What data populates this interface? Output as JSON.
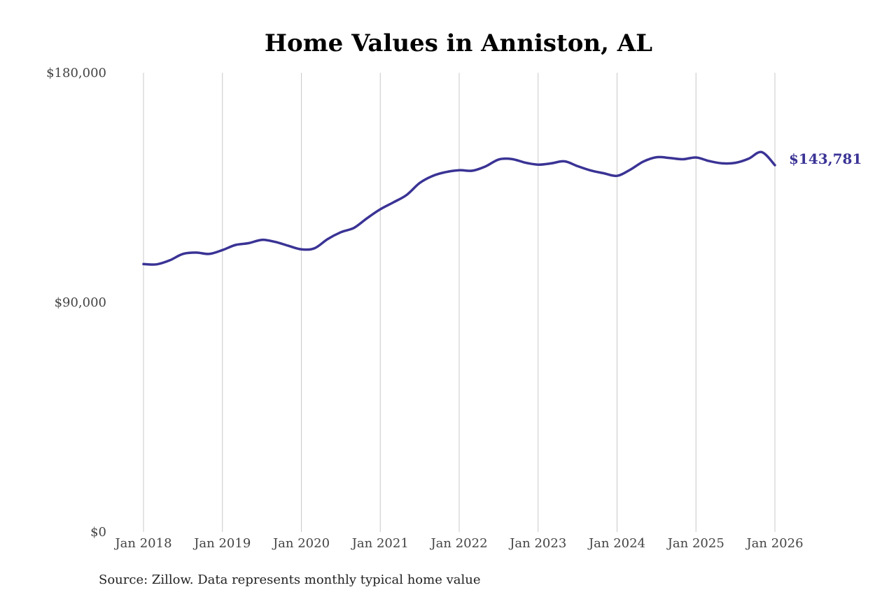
{
  "chart_data": {
    "type": "line",
    "title": "Home Values in Anniston, AL",
    "source": "Source: Zillow. Data represents monthly typical home value",
    "xlabel": "",
    "ylabel": "",
    "x_range": [
      "2018-01",
      "2026-01"
    ],
    "ylim": [
      0,
      180000
    ],
    "y_ticks": [
      0,
      90000,
      180000
    ],
    "y_tick_labels": [
      "$0",
      "$90,000",
      "$180,000"
    ],
    "x_ticks": [
      "2018-01",
      "2019-01",
      "2020-01",
      "2021-01",
      "2022-01",
      "2023-01",
      "2024-01",
      "2025-01",
      "2026-01"
    ],
    "x_tick_labels": [
      "Jan 2018",
      "Jan 2019",
      "Jan 2020",
      "Jan 2021",
      "Jan 2022",
      "Jan 2023",
      "Jan 2024",
      "Jan 2025",
      "Jan 2026"
    ],
    "grid": "vertical",
    "line_color": "#3a3395",
    "end_label": "$143,781",
    "series": [
      {
        "x": [
          "2018-01",
          "2018-03",
          "2018-05",
          "2018-07",
          "2018-09",
          "2018-11",
          "2019-01",
          "2019-03",
          "2019-05",
          "2019-07",
          "2019-09",
          "2019-11",
          "2020-01",
          "2020-03",
          "2020-05",
          "2020-07",
          "2020-09",
          "2020-11",
          "2021-01",
          "2021-03",
          "2021-05",
          "2021-07",
          "2021-09",
          "2021-11",
          "2022-01",
          "2022-03",
          "2022-05",
          "2022-07",
          "2022-09",
          "2022-11",
          "2023-01",
          "2023-03",
          "2023-05",
          "2023-07",
          "2023-09",
          "2023-11",
          "2024-01",
          "2024-03",
          "2024-05",
          "2024-07",
          "2024-09",
          "2024-11",
          "2025-01",
          "2025-03",
          "2025-05",
          "2025-07",
          "2025-09",
          "2025-11",
          "2026-01"
        ],
        "values": [
          105000,
          104900,
          106500,
          109000,
          109500,
          109000,
          110500,
          112500,
          113200,
          114500,
          113700,
          112200,
          110800,
          111200,
          114800,
          117500,
          119200,
          123000,
          126500,
          129200,
          132100,
          136800,
          139600,
          141100,
          141800,
          141600,
          143300,
          146000,
          146200,
          144800,
          144000,
          144500,
          145300,
          143400,
          141700,
          140600,
          139600,
          142000,
          145200,
          146900,
          146600,
          146100,
          146800,
          145400,
          144500,
          144700,
          146300,
          148900,
          143781
        ]
      }
    ]
  }
}
